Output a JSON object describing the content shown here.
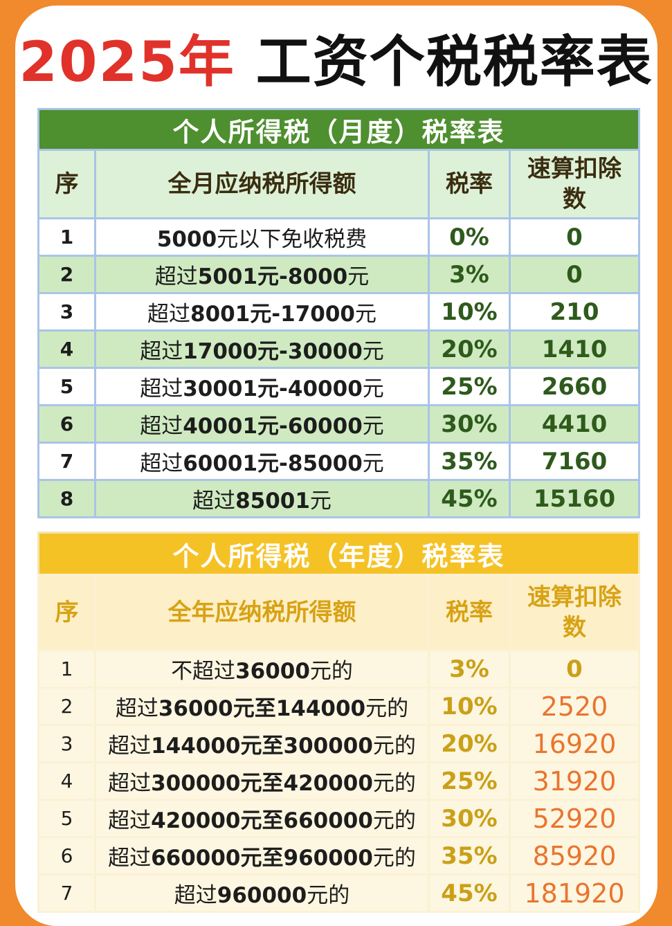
{
  "title": {
    "year": "2025年",
    "rest": "工资个税税率表"
  },
  "monthly": {
    "caption": "个人所得税（月度）税率表",
    "headers": {
      "no": "序",
      "income": "全月应纳税所得额",
      "rate": "税率",
      "deduction": "速算扣除数"
    },
    "rows": [
      {
        "no": "1",
        "pre": "",
        "range": "5000",
        "post": "元以下免收税费",
        "rate": "0%",
        "deduction": "0"
      },
      {
        "no": "2",
        "pre": "超过",
        "range": "5001元-8000",
        "post": "元",
        "rate": "3%",
        "deduction": "0"
      },
      {
        "no": "3",
        "pre": "超过",
        "range": "8001元-17000",
        "post": "元",
        "rate": "10%",
        "deduction": "210"
      },
      {
        "no": "4",
        "pre": "超过",
        "range": "17000元-30000",
        "post": "元",
        "rate": "20%",
        "deduction": "1410"
      },
      {
        "no": "5",
        "pre": "超过",
        "range": "30001元-40000",
        "post": "元",
        "rate": "25%",
        "deduction": "2660"
      },
      {
        "no": "6",
        "pre": "超过",
        "range": "40001元-60000",
        "post": "元",
        "rate": "30%",
        "deduction": "4410"
      },
      {
        "no": "7",
        "pre": "超过",
        "range": "60001元-85000",
        "post": "元",
        "rate": "35%",
        "deduction": "7160"
      },
      {
        "no": "8",
        "pre": "超过",
        "range": "85001",
        "post": "元",
        "rate": "45%",
        "deduction": "15160"
      }
    ]
  },
  "yearly": {
    "caption": "个人所得税（年度）税率表",
    "headers": {
      "no": "序",
      "income": "全年应纳税所得额",
      "rate": "税率",
      "deduction": "速算扣除数"
    },
    "rows": [
      {
        "no": "1",
        "pre": "不超过",
        "range": "36000",
        "post": "元的",
        "rate": "3%",
        "deduction": "0"
      },
      {
        "no": "2",
        "pre": "超过",
        "range": "36000元至144000",
        "post": "元的",
        "rate": "10%",
        "deduction": "2520"
      },
      {
        "no": "3",
        "pre": "超过",
        "range": "144000元至300000",
        "post": "元的",
        "rate": "20%",
        "deduction": "16920"
      },
      {
        "no": "4",
        "pre": "超过",
        "range": "300000元至420000",
        "post": "元的",
        "rate": "25%",
        "deduction": "31920"
      },
      {
        "no": "5",
        "pre": "超过",
        "range": "420000元至660000",
        "post": "元的",
        "rate": "30%",
        "deduction": "52920"
      },
      {
        "no": "6",
        "pre": "超过",
        "range": "660000元至960000",
        "post": "元的",
        "rate": "35%",
        "deduction": "85920"
      },
      {
        "no": "7",
        "pre": "超过",
        "range": "960000",
        "post": "元的",
        "rate": "45%",
        "deduction": "181920"
      }
    ]
  }
}
